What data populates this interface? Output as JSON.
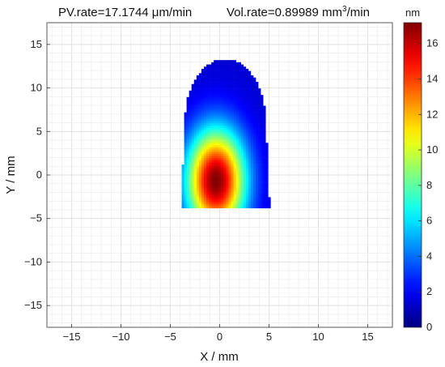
{
  "chart_data": {
    "type": "heatmap",
    "title_left": "PV.rate=17.1744  μm/min",
    "title_right_pre": "Vol.rate=0.89989 mm",
    "title_right_sup": "3",
    "title_right_post": "/min",
    "xlabel": "X / mm",
    "ylabel": "Y / mm",
    "xlim": [
      -17.5,
      17.5
    ],
    "ylim": [
      -17.5,
      17.5
    ],
    "xticks": [
      -15,
      -10,
      -5,
      0,
      5,
      10,
      15
    ],
    "yticks": [
      15,
      10,
      5,
      0,
      -5,
      -10,
      -15
    ],
    "grid": true,
    "colorbar": {
      "unit": "nm",
      "min": 0,
      "max": 17.1744,
      "ticks": [
        16,
        14,
        12,
        10,
        8,
        6,
        4,
        2,
        0
      ],
      "colormap": "jet"
    },
    "footprint": {
      "peak_value_nm": 17.1744,
      "peak_center": [
        -0.5,
        -0.8
      ],
      "x_extent": [
        -4.2,
        5.0
      ],
      "y_extent": [
        -3.8,
        13.2
      ]
    }
  }
}
